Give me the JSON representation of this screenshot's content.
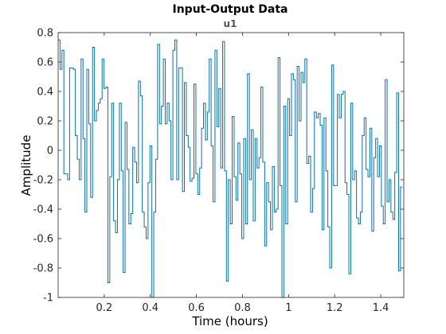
{
  "chart_data": {
    "type": "line",
    "title": "Input-Output Data",
    "subtitle": "u1",
    "xlabel": "Time (hours)",
    "ylabel": "Amplitude",
    "xlim": [
      0,
      1.5
    ],
    "ylim": [
      -1,
      0.8
    ],
    "grid": false,
    "xticks": [
      0.2,
      0.4,
      0.6,
      0.8,
      1,
      1.2,
      1.4
    ],
    "xtick_labels": [
      "0.2",
      "0.4",
      "0.6",
      "0.8",
      "1",
      "1.2",
      "1.4"
    ],
    "yticks": [
      -1,
      -0.8,
      -0.6,
      -0.4,
      -0.2,
      0,
      0.2,
      0.4,
      0.6,
      0.8
    ],
    "ytick_labels": [
      "-1",
      "-0.8",
      "-0.6",
      "-0.4",
      "-0.2",
      "0",
      "0.2",
      "0.4",
      "0.6",
      "0.8"
    ],
    "line_color": "#0072BD",
    "step_width": 0.0083,
    "series": [
      {
        "style": "stairs",
        "values": [
          0.75,
          0.55,
          0.68,
          -0.16,
          -0.16,
          -0.2,
          0.56,
          0.56,
          0.55,
          0.1,
          -0.06,
          -0.2,
          0.62,
          0.08,
          -0.42,
          0.55,
          0.18,
          -0.32,
          0.7,
          0.2,
          0.27,
          0.32,
          0.35,
          0.62,
          0.42,
          0.43,
          -0.9,
          -0.18,
          0.32,
          -0.48,
          -0.56,
          -0.2,
          0.32,
          -0.14,
          -0.83,
          0.19,
          -0.13,
          -0.5,
          -0.43,
          0.02,
          -0.08,
          -0.22,
          0.47,
          0.37,
          -0.42,
          -0.52,
          -0.6,
          -0.22,
          0.03,
          -1.0,
          -0.42,
          -0.06,
          0.72,
          0.18,
          0.3,
          0.62,
          0.18,
          0.32,
          0.2,
          -0.2,
          0.68,
          0.75,
          -0.2,
          0.56,
          0.56,
          -0.28,
          0.46,
          0.1,
          0.02,
          -0.21,
          -0.19,
          0.45,
          -0.16,
          -0.3,
          -0.12,
          0.15,
          0.32,
          0.07,
          0.26,
          0.62,
          0.03,
          -0.35,
          0.68,
          0.16,
          0.42,
          -0.12,
          0.74,
          -0.14,
          -0.89,
          -0.2,
          -0.5,
          0.23,
          -0.18,
          -0.34,
          0.05,
          -0.16,
          -0.6,
          0.08,
          -0.5,
          0.52,
          -0.2,
          0.14,
          -0.48,
          0.08,
          -0.12,
          -0.05,
          0.43,
          -0.08,
          -0.65,
          -0.22,
          -0.35,
          -0.54,
          -0.11,
          -0.42,
          -0.4,
          0.63,
          -0.24,
          -1.0,
          0.3,
          -0.5,
          0.35,
          0.1,
          0.52,
          0.48,
          -0.35,
          0.57,
          0.2,
          0.53,
          0.46,
          0.62,
          -0.09,
          -0.04,
          -0.42,
          -0.26,
          0.26,
          0.22,
          0.25,
          0.17,
          -0.54,
          0.22,
          -0.14,
          -0.52,
          -0.8,
          0.58,
          -0.24,
          -0.24,
          0.38,
          0.22,
          0.38,
          0.4,
          -0.22,
          -0.3,
          -0.84,
          0.32,
          -0.2,
          -0.14,
          -0.46,
          -0.5,
          -0.42,
          0.1,
          0.22,
          -0.13,
          -0.18,
          0.15,
          -0.55,
          -0.05,
          0.08,
          -0.18,
          0.03,
          -0.38,
          -0.5,
          0.48,
          -0.35,
          -0.2,
          -0.42,
          -0.47,
          -0.15,
          0.39,
          -0.82,
          -0.25
        ]
      }
    ]
  }
}
